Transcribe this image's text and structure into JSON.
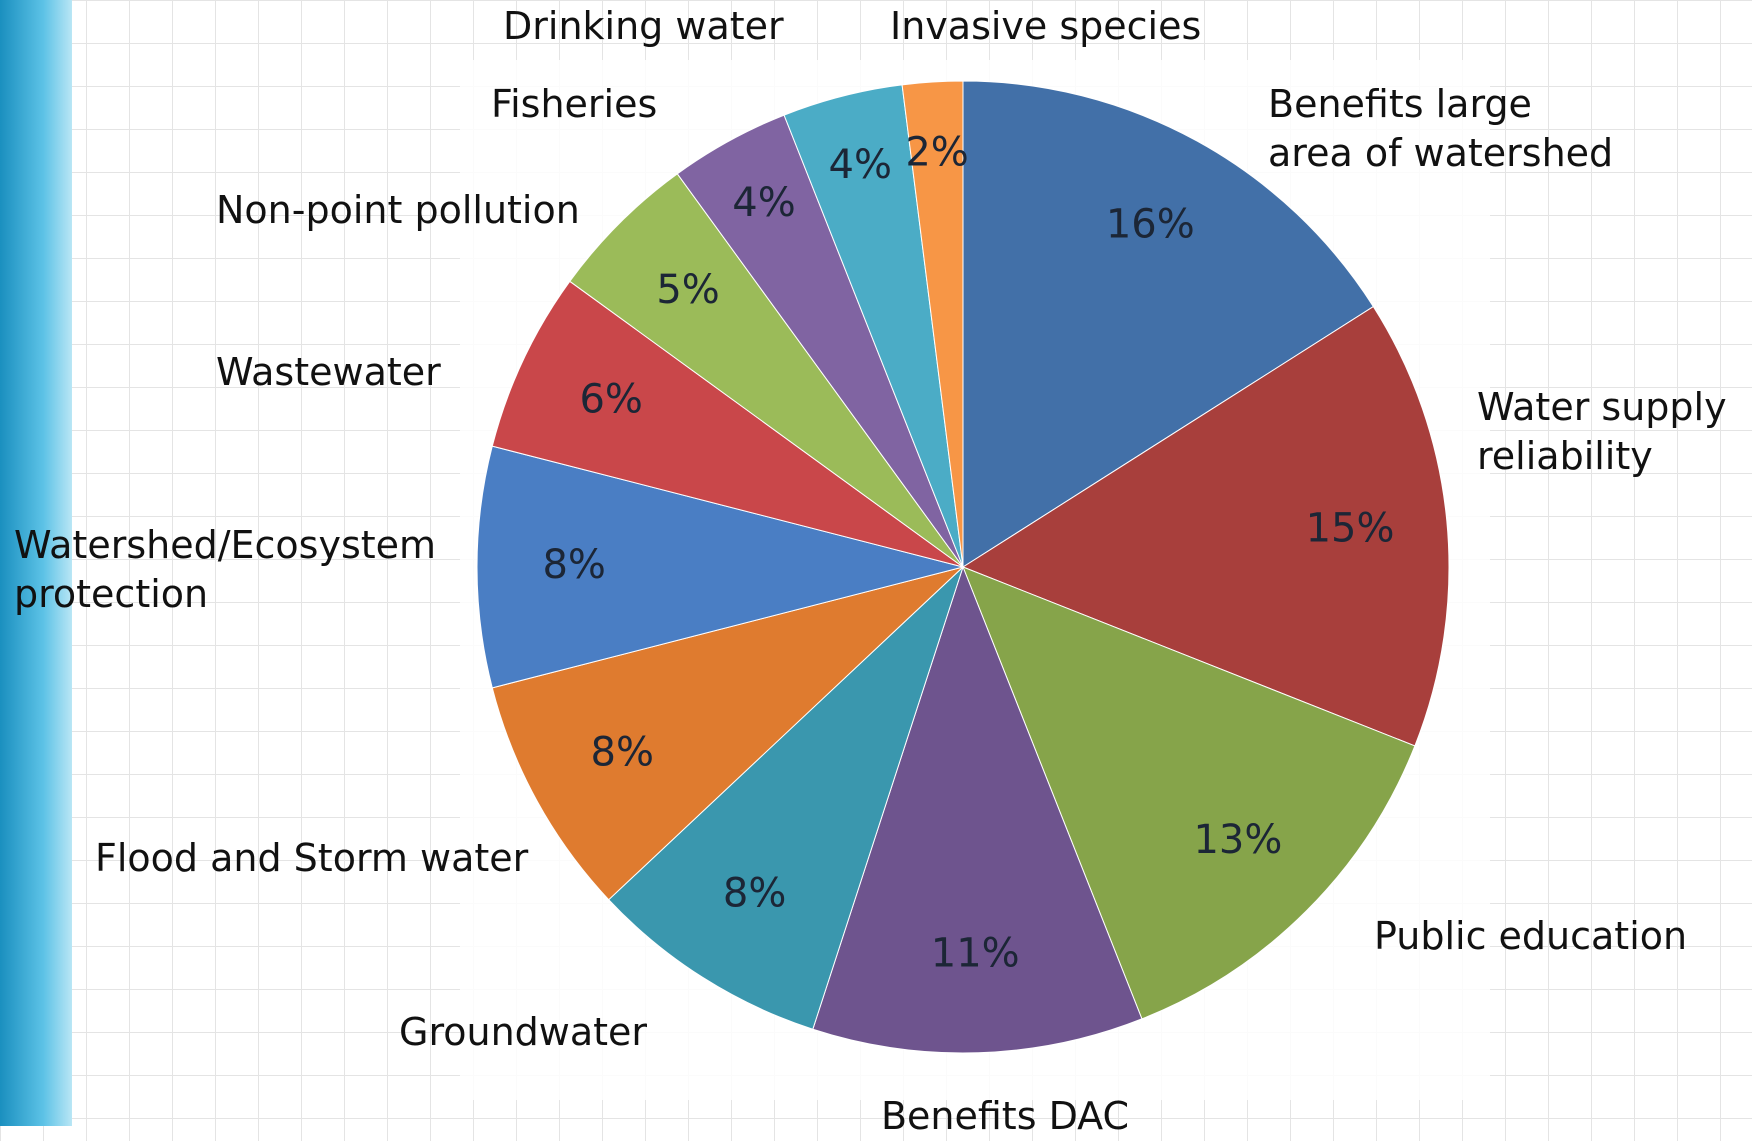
{
  "chart_data": {
    "type": "pie",
    "categories": [
      "Benefits large\narea of watershed",
      "Water supply\nreliability",
      "Public education",
      "Benefits DAC",
      "Groundwater",
      "Flood and Storm water",
      "Watershed/Ecosystem\nprotection",
      "Wastewater",
      "Non-point pollution",
      "Fisheries",
      "Drinking water",
      "Invasive species"
    ],
    "values": [
      16,
      15,
      13,
      11,
      8,
      8,
      8,
      6,
      5,
      4,
      4,
      2
    ],
    "value_labels": [
      "16%",
      "15%",
      "13%",
      "11%",
      "8%",
      "8%",
      "8%",
      "6%",
      "5%",
      "4%",
      "4%",
      "2%"
    ],
    "colors": [
      "#4270a8",
      "#a83f3c",
      "#86a44a",
      "#6e548e",
      "#3a97ae",
      "#df7b2f",
      "#4a7ec4",
      "#c9474a",
      "#9bbb59",
      "#8064a2",
      "#4bacc6",
      "#f79646"
    ]
  }
}
